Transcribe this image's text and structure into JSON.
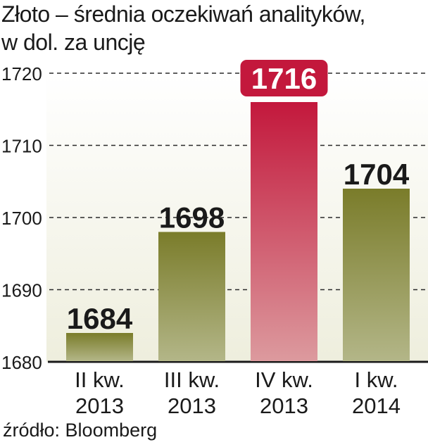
{
  "title_line1": "Złoto – średnia oczekiwań analityków,",
  "title_line2": "w dol. za uncję",
  "source": "źródło: Bloomberg",
  "chart_data": {
    "type": "bar",
    "categories": [
      [
        "II kw.",
        "2013"
      ],
      [
        "III kw.",
        "2013"
      ],
      [
        "IV kw.",
        "2013"
      ],
      [
        "I kw.",
        "2014"
      ]
    ],
    "values": [
      1684,
      1698,
      1716,
      1704
    ],
    "value_labels": [
      "1684",
      "1698",
      "1716",
      "1704"
    ],
    "highlight_index": 2,
    "ylim": [
      1680,
      1720
    ],
    "yticks": [
      1680,
      1690,
      1700,
      1710,
      1720
    ],
    "ytick_labels": [
      "1680",
      "1690",
      "1700",
      "1710",
      "1720"
    ],
    "grid": "dashed horizontal",
    "colors": {
      "bar_top": "#7a7c2a",
      "bar_bottom": "#b3b688",
      "highlight_top": "#c3183c",
      "highlight_bottom": "#dc9a9e",
      "background_top": "#ffffff",
      "background_bottom": "#eeeedd",
      "text": "#1a1a1a"
    }
  }
}
